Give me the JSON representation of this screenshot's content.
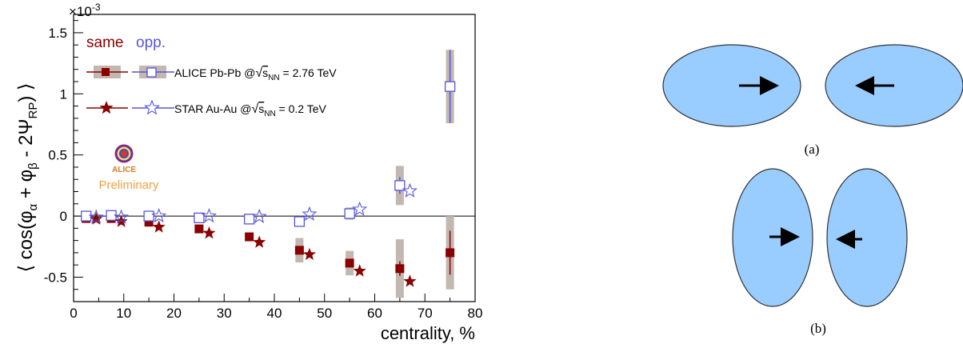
{
  "chart_data": {
    "type": "scatter",
    "title": "",
    "xlabel": "centrality, %",
    "ylabel": "⟨ cos(φα + φβ - 2ΨRP) ⟩",
    "y_multiplier": "×10-3",
    "xlim": [
      0,
      80
    ],
    "ylim": [
      -0.7,
      1.65
    ],
    "x_ticks": [
      0,
      10,
      20,
      30,
      40,
      50,
      60,
      70,
      80
    ],
    "y_ticks": [
      -0.5,
      0,
      0.5,
      1,
      1.5
    ],
    "x_tick_labels": [
      "0",
      "10",
      "20",
      "30",
      "40",
      "50",
      "60",
      "70",
      "80"
    ],
    "y_tick_labels": [
      "-0.5",
      "0",
      "0.5",
      "1",
      "1.5"
    ],
    "legend_header": {
      "same": "same",
      "opp": "opp."
    },
    "legend_rows": [
      {
        "label": "ALICE Pb-Pb  @√sNN = 2.76 TeV",
        "prefix": "ALICE Pb-Pb  @",
        "sqrt_s": "s",
        "sqrt_sub": "NN",
        "suffix": " = 2.76 TeV"
      },
      {
        "label": "STAR Au-Au  @√sNN = 0.2 TeV",
        "prefix": "STAR Au-Au  @",
        "sqrt_s": "s",
        "sqrt_sub": "NN",
        "suffix": " = 0.2 TeV"
      }
    ],
    "logo_text": "ALICE",
    "watermark": "Preliminary",
    "colors": {
      "same": "#8b0000",
      "opp": "#5555dd",
      "syst": "#c2b8b0",
      "zero_line": "#000000"
    },
    "series": [
      {
        "name": "ALICE Pb-Pb same",
        "marker": "filled-square",
        "color": "#8b0000",
        "x": [
          2.5,
          7.5,
          15,
          25,
          35,
          45,
          55,
          65,
          75
        ],
        "y": [
          -0.02,
          -0.02,
          -0.05,
          -0.105,
          -0.17,
          -0.28,
          -0.385,
          -0.43,
          -0.3
        ],
        "stat_err": [
          0.005,
          0.005,
          0.006,
          0.008,
          0.01,
          0.015,
          0.03,
          0.06,
          0.18
        ],
        "syst_err": [
          0.01,
          0.01,
          0.015,
          0.02,
          0.03,
          0.1,
          0.1,
          0.24,
          0.3
        ]
      },
      {
        "name": "ALICE Pb-Pb opp.",
        "marker": "open-square",
        "color": "#5555dd",
        "x": [
          2.5,
          7.5,
          15,
          25,
          35,
          45,
          55,
          65,
          75
        ],
        "y": [
          0.0,
          0.005,
          0.0,
          -0.015,
          -0.025,
          -0.045,
          0.02,
          0.25,
          1.06
        ],
        "stat_err": [
          0.004,
          0.004,
          0.005,
          0.006,
          0.008,
          0.012,
          0.03,
          0.07,
          0.3
        ],
        "syst_err": [
          0.006,
          0.006,
          0.008,
          0.01,
          0.015,
          0.02,
          0.05,
          0.16,
          0.3
        ]
      },
      {
        "name": "STAR Au-Au same",
        "marker": "filled-star",
        "color": "#8b0000",
        "x": [
          4.5,
          9.5,
          17,
          27,
          37,
          47,
          57,
          67
        ],
        "y": [
          -0.025,
          -0.045,
          -0.09,
          -0.14,
          -0.215,
          -0.315,
          -0.45,
          -0.535
        ],
        "stat_err": [
          0,
          0,
          0,
          0,
          0,
          0,
          0,
          0
        ],
        "syst_err": [
          0,
          0,
          0,
          0,
          0,
          0,
          0,
          0
        ]
      },
      {
        "name": "STAR Au-Au opp.",
        "marker": "open-star",
        "color": "#5555dd",
        "x": [
          4.5,
          9.5,
          17,
          27,
          37,
          47,
          57,
          67
        ],
        "y": [
          -0.01,
          -0.01,
          0.0,
          0.0,
          -0.005,
          0.015,
          0.055,
          0.205
        ],
        "stat_err": [
          0,
          0,
          0,
          0,
          0,
          0,
          0,
          0
        ],
        "syst_err": [
          0,
          0,
          0,
          0,
          0,
          0,
          0,
          0
        ]
      }
    ]
  },
  "diagram": {
    "fill_color": "#99ccff",
    "label_a": "(a)",
    "label_b": "(b)"
  }
}
